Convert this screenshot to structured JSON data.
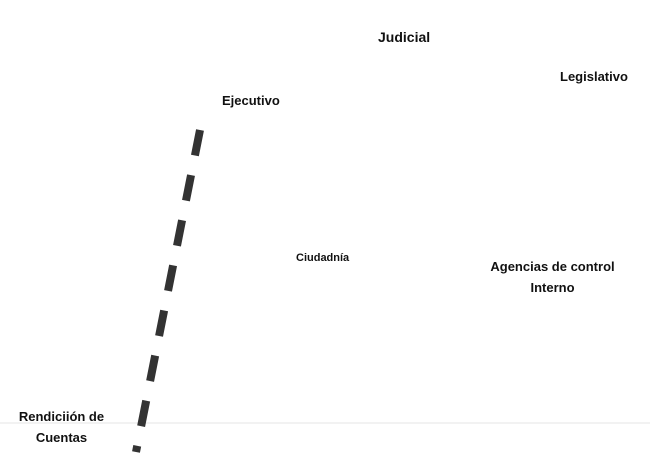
{
  "nodes": [
    {
      "label": "Judicial"
    },
    {
      "label": "Legislativo"
    },
    {
      "label": "Ejecutivo"
    },
    {
      "label": "Ciudadnía"
    },
    {
      "label": "Agencias de control Interno"
    },
    {
      "label": "Rendiciión de Cuentas"
    }
  ]
}
